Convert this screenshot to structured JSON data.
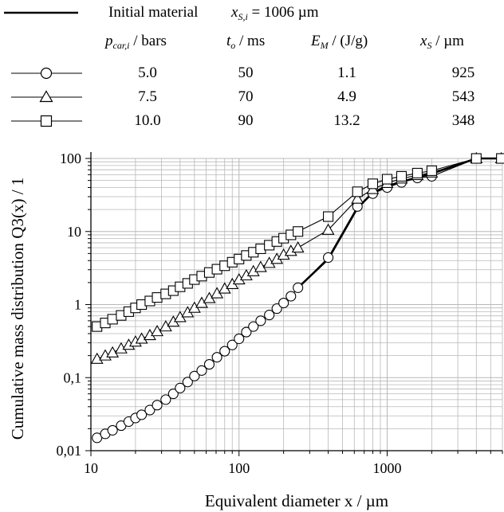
{
  "legend": {
    "initial": {
      "label": "Initial material",
      "xs_symbol": "x",
      "xs_sub": "S,i",
      "xs_value": "= 1006 µm"
    },
    "headers": {
      "p_sym": "p",
      "p_sub": "car,i",
      "p_unit": " / bars",
      "t_sym": "t",
      "t_sub": "o",
      "t_unit": " / ms",
      "e_sym": "E",
      "e_sub": "M",
      "e_unit": " / (J/g)",
      "x_sym": "x",
      "x_sub": "S",
      "x_unit": " / µm"
    },
    "rows": [
      {
        "marker": "circle",
        "p": "5.0",
        "t": "50",
        "e": "1.1",
        "xs": "925"
      },
      {
        "marker": "triangle",
        "p": "7.5",
        "t": "70",
        "e": "4.9",
        "xs": "543"
      },
      {
        "marker": "square",
        "p": "10.0",
        "t": "90",
        "e": "13.2",
        "xs": "348"
      }
    ]
  },
  "chart_data": {
    "type": "line",
    "xscale": "log",
    "yscale": "log",
    "xlim": [
      10,
      6000
    ],
    "ylim": [
      0.01,
      100
    ],
    "xlabel": "Equivalent diameter x / µm",
    "ylabel": "Cumulative mass distribution Q3(x) / 1",
    "xticks": [
      {
        "value": 10,
        "label": "10"
      },
      {
        "value": 100,
        "label": "100"
      },
      {
        "value": 1000,
        "label": "1000"
      }
    ],
    "yticks": [
      {
        "value": 0.01,
        "label": "0,01"
      },
      {
        "value": 0.1,
        "label": "0,1"
      },
      {
        "value": 1,
        "label": "1"
      },
      {
        "value": 10,
        "label": "10"
      },
      {
        "value": 100,
        "label": "100"
      }
    ],
    "grid": true,
    "series": [
      {
        "marker": "none",
        "color": "#000000",
        "x": [
          250,
          400,
          630,
          800,
          1000,
          1250,
          1600,
          2000,
          4000,
          5900
        ],
        "y": [
          1.7,
          4.2,
          21,
          34,
          42,
          48,
          55,
          62,
          100,
          100
        ]
      },
      {
        "marker": "circle",
        "color": "#000000",
        "x": [
          11,
          12.5,
          14,
          16,
          18,
          20,
          22,
          25,
          28,
          32,
          36,
          40,
          45,
          50,
          56,
          63,
          71,
          80,
          90,
          100,
          112,
          125,
          140,
          160,
          180,
          200,
          224,
          250,
          400,
          630,
          800,
          1000,
          1250,
          1600,
          2000,
          4000,
          5900
        ],
        "y": [
          0.015,
          0.017,
          0.019,
          0.022,
          0.025,
          0.028,
          0.031,
          0.036,
          0.042,
          0.05,
          0.06,
          0.072,
          0.087,
          0.105,
          0.125,
          0.152,
          0.19,
          0.23,
          0.28,
          0.34,
          0.42,
          0.5,
          0.6,
          0.72,
          0.88,
          1.05,
          1.3,
          1.7,
          4.4,
          22,
          33,
          40,
          47,
          54,
          57,
          100,
          100
        ]
      },
      {
        "marker": "triangle",
        "color": "#000000",
        "x": [
          11,
          12.5,
          14,
          16,
          18,
          20,
          22,
          25,
          28,
          32,
          36,
          40,
          45,
          50,
          56,
          63,
          71,
          80,
          90,
          100,
          112,
          125,
          140,
          160,
          180,
          200,
          224,
          250,
          400,
          630,
          800,
          1000,
          1250,
          1600,
          2000,
          4000,
          5900
        ],
        "y": [
          0.18,
          0.2,
          0.22,
          0.25,
          0.28,
          0.31,
          0.34,
          0.38,
          0.43,
          0.5,
          0.58,
          0.67,
          0.78,
          0.9,
          1.05,
          1.22,
          1.42,
          1.65,
          1.9,
          2.2,
          2.5,
          2.85,
          3.25,
          3.7,
          4.2,
          4.8,
          5.4,
          6.0,
          10.5,
          28,
          38,
          46,
          53,
          59,
          64,
          100,
          100
        ]
      },
      {
        "marker": "square",
        "color": "#000000",
        "x": [
          11,
          12.5,
          14,
          16,
          18,
          20,
          22,
          25,
          28,
          32,
          36,
          40,
          45,
          50,
          56,
          63,
          71,
          80,
          90,
          100,
          112,
          125,
          140,
          160,
          180,
          200,
          224,
          250,
          400,
          630,
          800,
          1000,
          1250,
          1600,
          2000,
          4000,
          5900
        ],
        "y": [
          0.5,
          0.56,
          0.63,
          0.71,
          0.8,
          0.9,
          1.0,
          1.12,
          1.25,
          1.4,
          1.55,
          1.75,
          1.95,
          2.2,
          2.45,
          2.75,
          3.05,
          3.4,
          3.8,
          4.2,
          4.7,
          5.2,
          5.8,
          6.5,
          7.3,
          8.1,
          9.0,
          10.0,
          16,
          35,
          45,
          52,
          57,
          63,
          68,
          100,
          100
        ]
      }
    ]
  }
}
